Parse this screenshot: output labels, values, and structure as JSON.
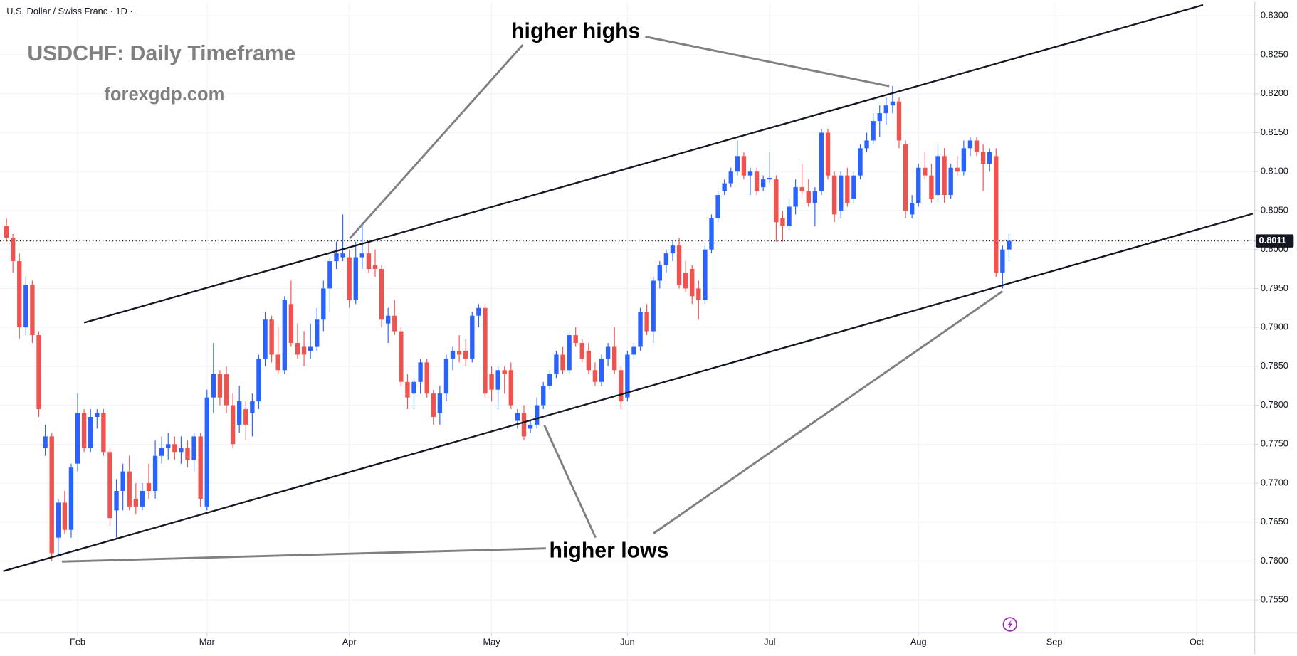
{
  "chart_data": {
    "type": "candlestick",
    "header": "U.S. Dollar / Swiss Franc · 1D ·",
    "title": "USDCHF: Daily Timeframe",
    "subtitle": "forexgdp.com",
    "annotations": [
      "higher highs",
      "higher lows"
    ],
    "up_color": "#2962ff",
    "down_color": "#ef5350",
    "last_price": 0.8011,
    "xlim": [
      -1,
      193
    ],
    "xticks": [
      {
        "value": 11,
        "label": "Feb"
      },
      {
        "value": 31,
        "label": "Mar"
      },
      {
        "value": 53,
        "label": "Apr"
      },
      {
        "value": 75,
        "label": "May"
      },
      {
        "value": 96,
        "label": "Jun"
      },
      {
        "value": 118,
        "label": "Jul"
      },
      {
        "value": 141,
        "label": "Aug"
      },
      {
        "value": 162,
        "label": "Sep"
      },
      {
        "value": 184,
        "label": "Oct"
      }
    ],
    "ylim": [
      0.7508,
      0.8318
    ],
    "yticks": [
      {
        "value": 0.755,
        "label": "0.7550"
      },
      {
        "value": 0.76,
        "label": "0.7600"
      },
      {
        "value": 0.765,
        "label": "0.7650"
      },
      {
        "value": 0.77,
        "label": "0.7700"
      },
      {
        "value": 0.775,
        "label": "0.7750"
      },
      {
        "value": 0.78,
        "label": "0.7800"
      },
      {
        "value": 0.785,
        "label": "0.7850"
      },
      {
        "value": 0.79,
        "label": "0.7900"
      },
      {
        "value": 0.795,
        "label": "0.7950"
      },
      {
        "value": 0.8,
        "label": "0.8000"
      },
      {
        "value": 0.805,
        "label": "0.8050"
      },
      {
        "value": 0.81,
        "label": "0.8100"
      },
      {
        "value": 0.815,
        "label": "0.8150"
      },
      {
        "value": 0.82,
        "label": "0.8200"
      },
      {
        "value": 0.825,
        "label": "0.8250"
      },
      {
        "value": 0.83,
        "label": "0.8300"
      }
    ],
    "trendlines": [
      {
        "x": [
          12,
          185
        ],
        "y": [
          0.7906,
          0.8314
        ]
      },
      {
        "x": [
          -0.5,
          192.7
        ],
        "y": [
          0.7587,
          0.8046
        ]
      }
    ],
    "candles": [
      [
        0.803,
        0.804,
        0.801,
        0.8015
      ],
      [
        0.8015,
        0.802,
        0.797,
        0.7985
      ],
      [
        0.7985,
        0.7995,
        0.7885,
        0.79
      ],
      [
        0.79,
        0.7965,
        0.789,
        0.7955
      ],
      [
        0.7955,
        0.796,
        0.788,
        0.789
      ],
      [
        0.789,
        0.7895,
        0.7785,
        0.7795
      ],
      [
        0.7745,
        0.7775,
        0.7735,
        0.776
      ],
      [
        0.776,
        0.7765,
        0.76,
        0.761
      ],
      [
        0.763,
        0.768,
        0.7605,
        0.7675
      ],
      [
        0.7675,
        0.769,
        0.7635,
        0.764
      ],
      [
        0.764,
        0.7725,
        0.763,
        0.772
      ],
      [
        0.7725,
        0.7815,
        0.7715,
        0.779
      ],
      [
        0.779,
        0.7795,
        0.774,
        0.7745
      ],
      [
        0.7745,
        0.7795,
        0.774,
        0.7785
      ],
      [
        0.7785,
        0.7795,
        0.777,
        0.779
      ],
      [
        0.779,
        0.7795,
        0.7735,
        0.774
      ],
      [
        0.774,
        0.7745,
        0.7645,
        0.7655
      ],
      [
        0.7665,
        0.7705,
        0.763,
        0.769
      ],
      [
        0.769,
        0.7725,
        0.7665,
        0.7715
      ],
      [
        0.7715,
        0.7735,
        0.7665,
        0.767
      ],
      [
        0.768,
        0.77,
        0.766,
        0.767
      ],
      [
        0.767,
        0.77,
        0.7665,
        0.769
      ],
      [
        0.77,
        0.7725,
        0.768,
        0.769
      ],
      [
        0.769,
        0.7755,
        0.768,
        0.7735
      ],
      [
        0.7735,
        0.776,
        0.7725,
        0.7745
      ],
      [
        0.7745,
        0.7765,
        0.773,
        0.775
      ],
      [
        0.775,
        0.776,
        0.773,
        0.774
      ],
      [
        0.774,
        0.776,
        0.7725,
        0.7745
      ],
      [
        0.7745,
        0.7755,
        0.772,
        0.773
      ],
      [
        0.773,
        0.7765,
        0.7715,
        0.776
      ],
      [
        0.776,
        0.7765,
        0.767,
        0.768
      ],
      [
        0.767,
        0.782,
        0.7665,
        0.781
      ],
      [
        0.781,
        0.788,
        0.779,
        0.784
      ],
      [
        0.784,
        0.7845,
        0.78,
        0.781
      ],
      [
        0.784,
        0.785,
        0.779,
        0.78
      ],
      [
        0.78,
        0.7815,
        0.7745,
        0.775
      ],
      [
        0.7775,
        0.7825,
        0.7765,
        0.7805
      ],
      [
        0.7795,
        0.7805,
        0.7755,
        0.7775
      ],
      [
        0.779,
        0.7815,
        0.776,
        0.7805
      ],
      [
        0.7805,
        0.7865,
        0.7795,
        0.786
      ],
      [
        0.786,
        0.792,
        0.785,
        0.791
      ],
      [
        0.791,
        0.7915,
        0.7855,
        0.7865
      ],
      [
        0.7865,
        0.79,
        0.784,
        0.7845
      ],
      [
        0.7845,
        0.794,
        0.784,
        0.7935
      ],
      [
        0.793,
        0.796,
        0.7875,
        0.788
      ],
      [
        0.788,
        0.7905,
        0.786,
        0.7865
      ],
      [
        0.7875,
        0.7895,
        0.785,
        0.7865
      ],
      [
        0.787,
        0.7905,
        0.786,
        0.7875
      ],
      [
        0.7875,
        0.7925,
        0.787,
        0.791
      ],
      [
        0.791,
        0.796,
        0.7895,
        0.795
      ],
      [
        0.795,
        0.799,
        0.792,
        0.7985
      ],
      [
        0.7985,
        0.801,
        0.7975,
        0.7995
      ],
      [
        0.799,
        0.8045,
        0.7985,
        0.7995
      ],
      [
        0.799,
        0.8,
        0.7925,
        0.7935
      ],
      [
        0.7935,
        0.801,
        0.793,
        0.799
      ],
      [
        0.799,
        0.8035,
        0.7975,
        0.7995
      ],
      [
        0.7995,
        0.801,
        0.797,
        0.7975
      ],
      [
        0.798,
        0.8,
        0.7965,
        0.7975
      ],
      [
        0.7975,
        0.798,
        0.79,
        0.791
      ],
      [
        0.7905,
        0.7925,
        0.788,
        0.7915
      ],
      [
        0.7915,
        0.7935,
        0.789,
        0.7895
      ],
      [
        0.7895,
        0.79,
        0.7825,
        0.783
      ],
      [
        0.783,
        0.784,
        0.7795,
        0.781
      ],
      [
        0.7815,
        0.7835,
        0.7795,
        0.783
      ],
      [
        0.783,
        0.786,
        0.7815,
        0.7855
      ],
      [
        0.7855,
        0.786,
        0.781,
        0.7815
      ],
      [
        0.7815,
        0.782,
        0.7775,
        0.7785
      ],
      [
        0.779,
        0.7825,
        0.7775,
        0.7815
      ],
      [
        0.7815,
        0.7865,
        0.7805,
        0.786
      ],
      [
        0.786,
        0.7875,
        0.7845,
        0.787
      ],
      [
        0.787,
        0.789,
        0.7855,
        0.7865
      ],
      [
        0.787,
        0.7885,
        0.785,
        0.786
      ],
      [
        0.786,
        0.792,
        0.7855,
        0.7915
      ],
      [
        0.7915,
        0.793,
        0.79,
        0.7925
      ],
      [
        0.7925,
        0.793,
        0.781,
        0.7815
      ],
      [
        0.784,
        0.785,
        0.7805,
        0.782
      ],
      [
        0.782,
        0.785,
        0.7795,
        0.7845
      ],
      [
        0.7845,
        0.785,
        0.7815,
        0.784
      ],
      [
        0.7845,
        0.7855,
        0.7795,
        0.78
      ],
      [
        0.778,
        0.7795,
        0.777,
        0.779
      ],
      [
        0.779,
        0.78,
        0.7755,
        0.776
      ],
      [
        0.777,
        0.778,
        0.7765,
        0.7775
      ],
      [
        0.7775,
        0.781,
        0.777,
        0.78
      ],
      [
        0.78,
        0.783,
        0.7795,
        0.7825
      ],
      [
        0.7825,
        0.7845,
        0.782,
        0.784
      ],
      [
        0.784,
        0.787,
        0.7835,
        0.7865
      ],
      [
        0.7865,
        0.7875,
        0.784,
        0.7845
      ],
      [
        0.7845,
        0.7895,
        0.784,
        0.789
      ],
      [
        0.789,
        0.79,
        0.7875,
        0.788
      ],
      [
        0.788,
        0.7885,
        0.7855,
        0.786
      ],
      [
        0.787,
        0.788,
        0.784,
        0.7845
      ],
      [
        0.7845,
        0.7855,
        0.7825,
        0.783
      ],
      [
        0.783,
        0.7865,
        0.7825,
        0.786
      ],
      [
        0.786,
        0.788,
        0.785,
        0.7875
      ],
      [
        0.7875,
        0.79,
        0.784,
        0.7845
      ],
      [
        0.7845,
        0.785,
        0.7795,
        0.7805
      ],
      [
        0.781,
        0.787,
        0.7805,
        0.7865
      ],
      [
        0.7865,
        0.788,
        0.786,
        0.7875
      ],
      [
        0.7875,
        0.7925,
        0.787,
        0.792
      ],
      [
        0.792,
        0.793,
        0.789,
        0.7895
      ],
      [
        0.7895,
        0.7965,
        0.788,
        0.796
      ],
      [
        0.796,
        0.7985,
        0.795,
        0.798
      ],
      [
        0.798,
        0.8,
        0.797,
        0.7995
      ],
      [
        0.7995,
        0.801,
        0.7985,
        0.8005
      ],
      [
        0.8005,
        0.8015,
        0.795,
        0.7955
      ],
      [
        0.797,
        0.7985,
        0.7945,
        0.795
      ],
      [
        0.7975,
        0.798,
        0.793,
        0.794
      ],
      [
        0.795,
        0.796,
        0.791,
        0.7935
      ],
      [
        0.7935,
        0.8005,
        0.793,
        0.8
      ],
      [
        0.8,
        0.8045,
        0.7995,
        0.804
      ],
      [
        0.804,
        0.8075,
        0.8035,
        0.807
      ],
      [
        0.8075,
        0.809,
        0.807,
        0.8085
      ],
      [
        0.8085,
        0.8105,
        0.808,
        0.81
      ],
      [
        0.81,
        0.814,
        0.8095,
        0.812
      ],
      [
        0.812,
        0.8125,
        0.809,
        0.8095
      ],
      [
        0.8095,
        0.8105,
        0.807,
        0.81
      ],
      [
        0.81,
        0.8105,
        0.807,
        0.8075
      ],
      [
        0.808,
        0.8095,
        0.8075,
        0.809
      ],
      [
        0.809,
        0.8125,
        0.8085,
        0.8092
      ],
      [
        0.809,
        0.8095,
        0.801,
        0.8035
      ],
      [
        0.804,
        0.805,
        0.801,
        0.803
      ],
      [
        0.803,
        0.8065,
        0.8025,
        0.8055
      ],
      [
        0.8055,
        0.809,
        0.8045,
        0.808
      ],
      [
        0.808,
        0.811,
        0.807,
        0.8075
      ],
      [
        0.8075,
        0.809,
        0.8055,
        0.806
      ],
      [
        0.806,
        0.808,
        0.803,
        0.8075
      ],
      [
        0.8075,
        0.8155,
        0.807,
        0.815
      ],
      [
        0.815,
        0.8155,
        0.809,
        0.8095
      ],
      [
        0.8095,
        0.81,
        0.8035,
        0.8045
      ],
      [
        0.805,
        0.81,
        0.804,
        0.8095
      ],
      [
        0.8095,
        0.8105,
        0.8055,
        0.806
      ],
      [
        0.8065,
        0.81,
        0.806,
        0.8095
      ],
      [
        0.8095,
        0.8135,
        0.809,
        0.813
      ],
      [
        0.813,
        0.815,
        0.8125,
        0.814
      ],
      [
        0.814,
        0.8175,
        0.8135,
        0.8165
      ],
      [
        0.8165,
        0.8185,
        0.8145,
        0.8175
      ],
      [
        0.8175,
        0.8195,
        0.816,
        0.8185
      ],
      [
        0.8185,
        0.821,
        0.8175,
        0.819
      ],
      [
        0.819,
        0.8195,
        0.813,
        0.814
      ],
      [
        0.8135,
        0.814,
        0.804,
        0.805
      ],
      [
        0.8045,
        0.807,
        0.804,
        0.806
      ],
      [
        0.806,
        0.811,
        0.8055,
        0.8105
      ],
      [
        0.8105,
        0.8125,
        0.809,
        0.8095
      ],
      [
        0.8095,
        0.811,
        0.806,
        0.8065
      ],
      [
        0.807,
        0.8135,
        0.806,
        0.812
      ],
      [
        0.812,
        0.813,
        0.806,
        0.807
      ],
      [
        0.807,
        0.811,
        0.8065,
        0.8105
      ],
      [
        0.8105,
        0.812,
        0.8095,
        0.81
      ],
      [
        0.81,
        0.814,
        0.8095,
        0.813
      ],
      [
        0.813,
        0.8145,
        0.812,
        0.814
      ],
      [
        0.814,
        0.8145,
        0.812,
        0.8125
      ],
      [
        0.8125,
        0.8135,
        0.8075,
        0.811
      ],
      [
        0.811,
        0.813,
        0.81,
        0.8125
      ],
      [
        0.812,
        0.813,
        0.7965,
        0.797
      ],
      [
        0.797,
        0.8005,
        0.795,
        0.8
      ],
      [
        0.8,
        0.802,
        0.7985,
        0.8011
      ]
    ]
  }
}
